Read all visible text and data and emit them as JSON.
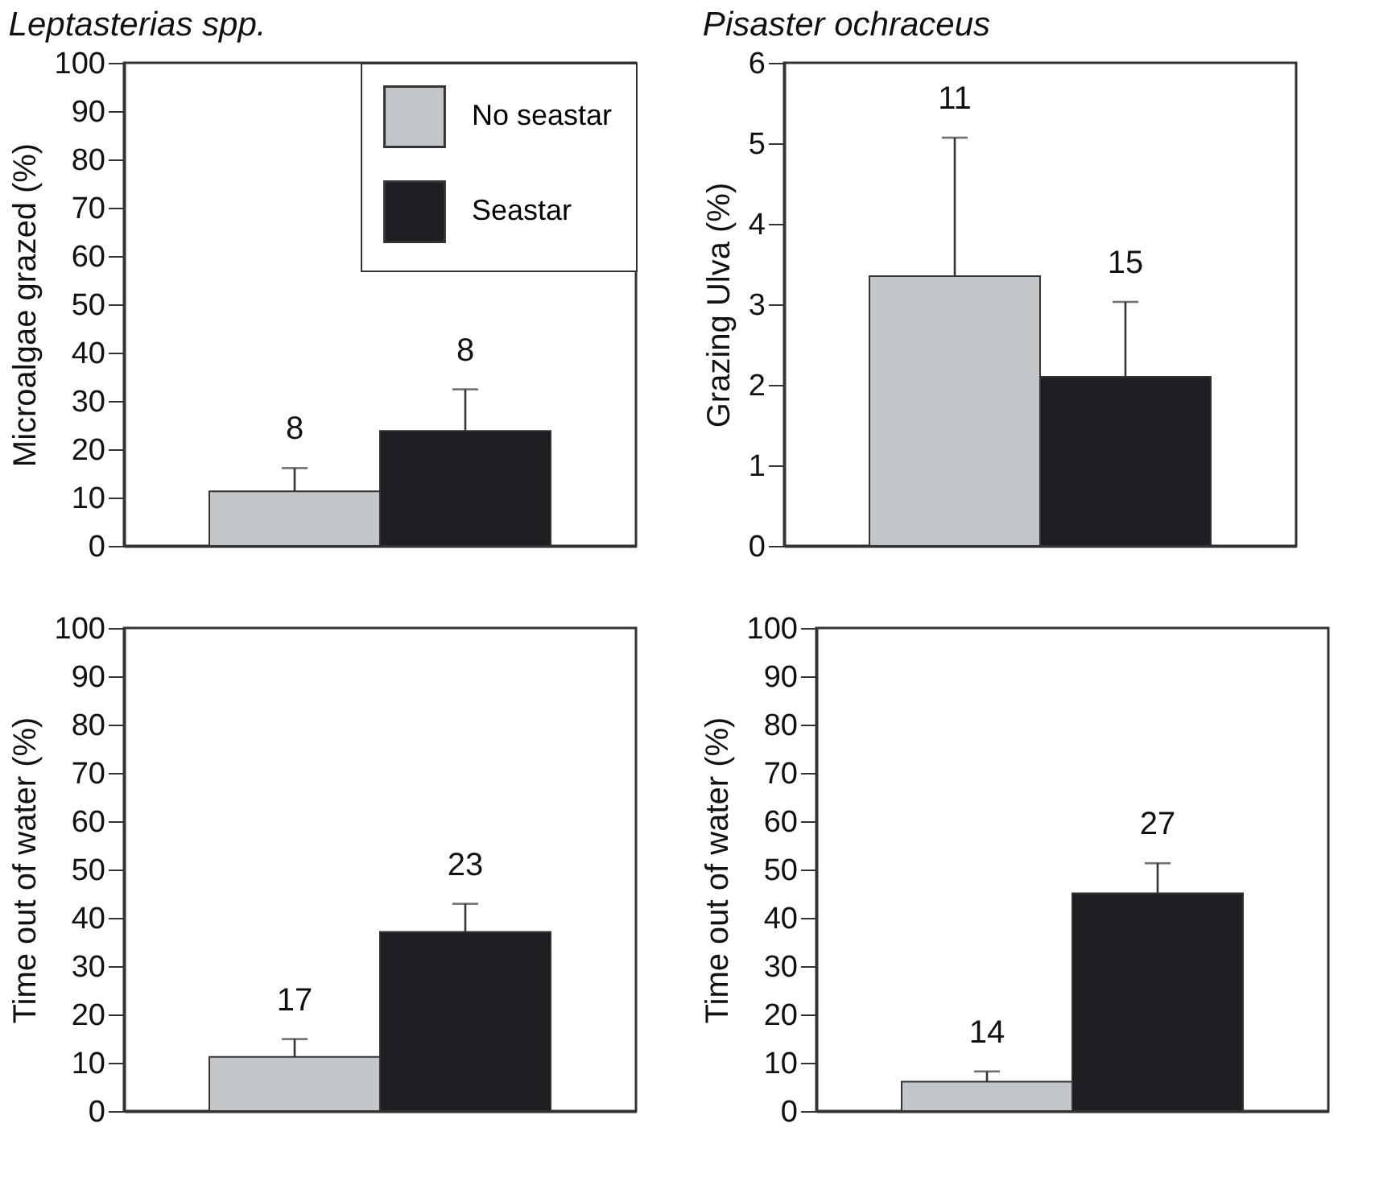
{
  "chart_data": [
    {
      "type": "bar",
      "title": "Leptasterias spp.",
      "ylabel": "Microalgae grazed (%)",
      "categories": [
        null
      ],
      "ylim": [
        0,
        100
      ],
      "yticks": [
        0,
        10,
        20,
        30,
        40,
        50,
        60,
        70,
        80,
        90,
        100
      ],
      "legend": "top right",
      "series": [
        {
          "name": "No seastar",
          "color": "#c3c6c8",
          "values": [
            11.3
          ],
          "errors": [
            [
              11.3,
              16.1
            ]
          ]
        },
        {
          "name": "Seastar",
          "color": "#1e1f22",
          "values": [
            23.8
          ],
          "errors": [
            [
              23.8,
              32.4
            ]
          ]
        }
      ],
      "annotations": [
        "8",
        "8"
      ]
    },
    {
      "type": "bar",
      "title": "Pisaster ochraceus",
      "ylabel": "Grazing Ulva (%)",
      "categories": [
        null
      ],
      "ylim": [
        0,
        6
      ],
      "yticks": [
        0,
        1,
        2,
        3,
        4,
        5,
        6
      ],
      "series": [
        {
          "color": "#c3c6c8",
          "values": [
            3.35
          ],
          "errors": [
            [
              3.35,
              5.07
            ]
          ]
        },
        {
          "color": "#1e1f22",
          "values": [
            2.1
          ],
          "errors": [
            [
              2.1,
              3.03
            ]
          ]
        }
      ],
      "annotations": [
        "11",
        "15"
      ]
    },
    {
      "type": "bar",
      "ylabel": "Time out of water (%)",
      "categories": [
        null
      ],
      "ylim": [
        0,
        100
      ],
      "yticks": [
        0,
        10,
        20,
        30,
        40,
        50,
        60,
        70,
        80,
        90,
        100
      ],
      "series": [
        {
          "color": "#c3c6c8",
          "values": [
            11.2
          ],
          "errors": [
            [
              11.2,
              14.9
            ]
          ]
        },
        {
          "color": "#1e1f22",
          "values": [
            37.1
          ],
          "errors": [
            [
              37.1,
              42.9
            ]
          ]
        }
      ],
      "annotations": [
        "17",
        "23"
      ]
    },
    {
      "type": "bar",
      "ylabel": "Time out of water (%)",
      "categories": [
        null
      ],
      "ylim": [
        0,
        100
      ],
      "yticks": [
        0,
        10,
        20,
        30,
        40,
        50,
        60,
        70,
        80,
        90,
        100
      ],
      "series": [
        {
          "color": "#c3c6c8",
          "values": [
            6.1
          ],
          "errors": [
            [
              6.1,
              8.2
            ]
          ]
        },
        {
          "color": "#1e1f22",
          "values": [
            45.1
          ],
          "errors": [
            [
              45.1,
              51.3
            ]
          ]
        }
      ],
      "annotations": [
        "14",
        "27"
      ]
    }
  ]
}
